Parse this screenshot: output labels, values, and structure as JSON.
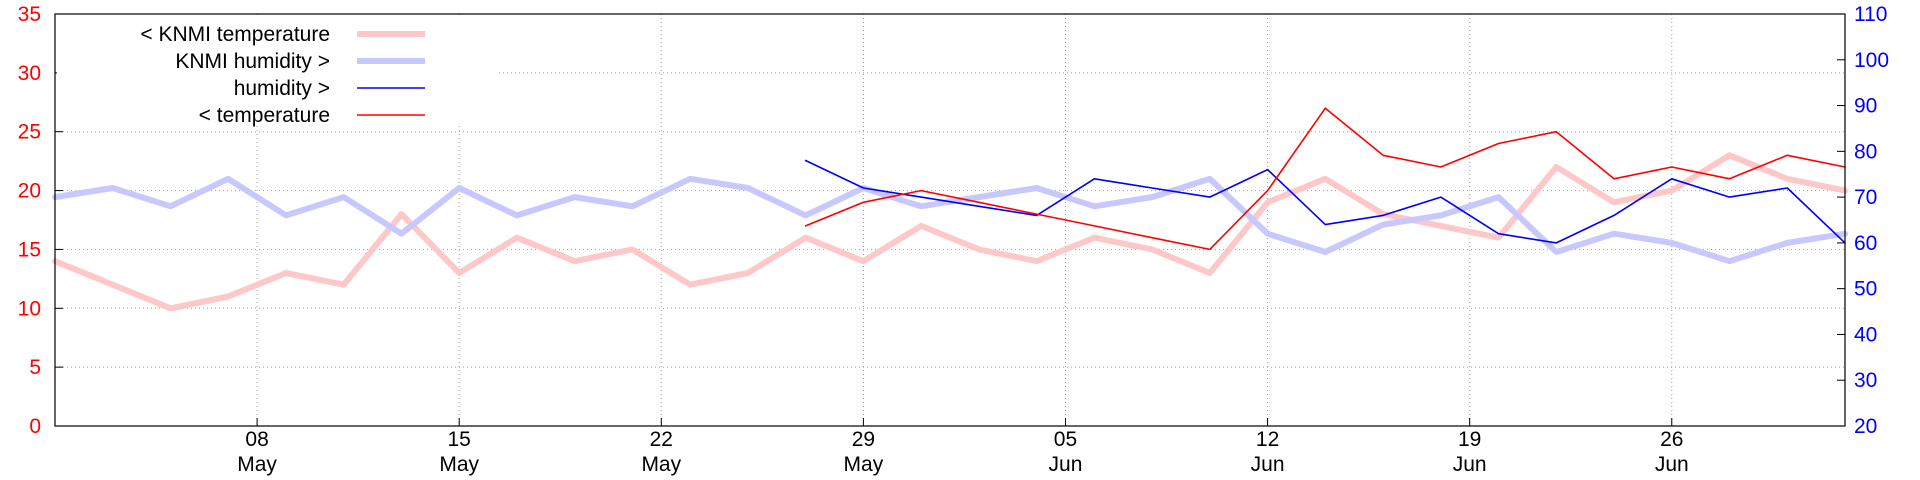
{
  "chart_data": {
    "type": "line",
    "title": "",
    "xlabel": "",
    "ylabel_left": "",
    "ylabel_right": "",
    "x_range": [
      "2024-05-01",
      "2024-07-02"
    ],
    "ylim_left": [
      0,
      35
    ],
    "ylim_right": [
      20,
      110
    ],
    "y_ticks_left": [
      "0",
      "5",
      "10",
      "15",
      "20",
      "25",
      "30",
      "35"
    ],
    "y_ticks_right": [
      "20",
      "30",
      "40",
      "50",
      "60",
      "70",
      "80",
      "90",
      "100",
      "110"
    ],
    "x_ticks": [
      {
        "date": "2024-05-08",
        "day": "08",
        "month": "May"
      },
      {
        "date": "2024-05-15",
        "day": "15",
        "month": "May"
      },
      {
        "date": "2024-05-22",
        "day": "22",
        "month": "May"
      },
      {
        "date": "2024-05-29",
        "day": "29",
        "month": "May"
      },
      {
        "date": "2024-06-05",
        "day": "05",
        "month": "Jun"
      },
      {
        "date": "2024-06-12",
        "day": "12",
        "month": "Jun"
      },
      {
        "date": "2024-06-19",
        "day": "19",
        "month": "Jun"
      },
      {
        "date": "2024-06-26",
        "day": "26",
        "month": "Jun"
      }
    ],
    "grid": true,
    "legend_position": "top-left",
    "series": [
      {
        "name": "< KNMI temperature",
        "axis": "left",
        "color": "#ffc8c8",
        "style": "thick",
        "x": [
          "2024-05-01",
          "2024-05-03",
          "2024-05-05",
          "2024-05-07",
          "2024-05-09",
          "2024-05-11",
          "2024-05-13",
          "2024-05-15",
          "2024-05-17",
          "2024-05-19",
          "2024-05-21",
          "2024-05-23",
          "2024-05-25",
          "2024-05-27",
          "2024-05-29",
          "2024-05-31",
          "2024-06-02",
          "2024-06-04",
          "2024-06-06",
          "2024-06-08",
          "2024-06-10",
          "2024-06-12",
          "2024-06-14",
          "2024-06-16",
          "2024-06-18",
          "2024-06-20",
          "2024-06-22",
          "2024-06-24",
          "2024-06-26",
          "2024-06-28",
          "2024-06-30",
          "2024-07-02"
        ],
        "values": [
          14,
          12,
          10,
          11,
          13,
          12,
          18,
          13,
          16,
          14,
          15,
          12,
          13,
          16,
          14,
          17,
          15,
          14,
          16,
          15,
          13,
          19,
          21,
          18,
          17,
          16,
          22,
          19,
          20,
          23,
          21,
          20
        ]
      },
      {
        "name": "KNMI humidity >",
        "axis": "right",
        "color": "#c8c8ff",
        "style": "thick",
        "x": [
          "2024-05-01",
          "2024-05-03",
          "2024-05-05",
          "2024-05-07",
          "2024-05-09",
          "2024-05-11",
          "2024-05-13",
          "2024-05-15",
          "2024-05-17",
          "2024-05-19",
          "2024-05-21",
          "2024-05-23",
          "2024-05-25",
          "2024-05-27",
          "2024-05-29",
          "2024-05-31",
          "2024-06-02",
          "2024-06-04",
          "2024-06-06",
          "2024-06-08",
          "2024-06-10",
          "2024-06-12",
          "2024-06-14",
          "2024-06-16",
          "2024-06-18",
          "2024-06-20",
          "2024-06-22",
          "2024-06-24",
          "2024-06-26",
          "2024-06-28",
          "2024-06-30",
          "2024-07-02"
        ],
        "values": [
          70,
          72,
          68,
          74,
          66,
          70,
          62,
          72,
          66,
          70,
          68,
          74,
          72,
          66,
          72,
          68,
          70,
          72,
          68,
          70,
          74,
          62,
          58,
          64,
          66,
          70,
          58,
          62,
          60,
          56,
          60,
          62
        ]
      },
      {
        "name": "humidity >",
        "axis": "right",
        "color": "#0000ff",
        "style": "thin",
        "x": [
          "2024-05-27",
          "2024-05-29",
          "2024-05-31",
          "2024-06-02",
          "2024-06-04",
          "2024-06-06",
          "2024-06-08",
          "2024-06-10",
          "2024-06-12",
          "2024-06-14",
          "2024-06-16",
          "2024-06-18",
          "2024-06-20",
          "2024-06-22",
          "2024-06-24",
          "2024-06-26",
          "2024-06-28",
          "2024-06-30",
          "2024-07-02"
        ],
        "values": [
          78,
          72,
          70,
          68,
          66,
          74,
          72,
          70,
          76,
          64,
          66,
          70,
          62,
          60,
          66,
          74,
          70,
          72,
          60
        ]
      },
      {
        "name": "< temperature",
        "axis": "left",
        "color": "#ff0000",
        "style": "thin",
        "x": [
          "2024-05-27",
          "2024-05-29",
          "2024-05-31",
          "2024-06-02",
          "2024-06-04",
          "2024-06-06",
          "2024-06-08",
          "2024-06-10",
          "2024-06-12",
          "2024-06-14",
          "2024-06-16",
          "2024-06-18",
          "2024-06-20",
          "2024-06-22",
          "2024-06-24",
          "2024-06-26",
          "2024-06-28",
          "2024-06-30",
          "2024-07-02"
        ],
        "values": [
          17,
          19,
          20,
          19,
          18,
          17,
          16,
          15,
          20,
          27,
          23,
          22,
          24,
          25,
          21,
          22,
          21,
          23,
          22
        ]
      }
    ]
  }
}
